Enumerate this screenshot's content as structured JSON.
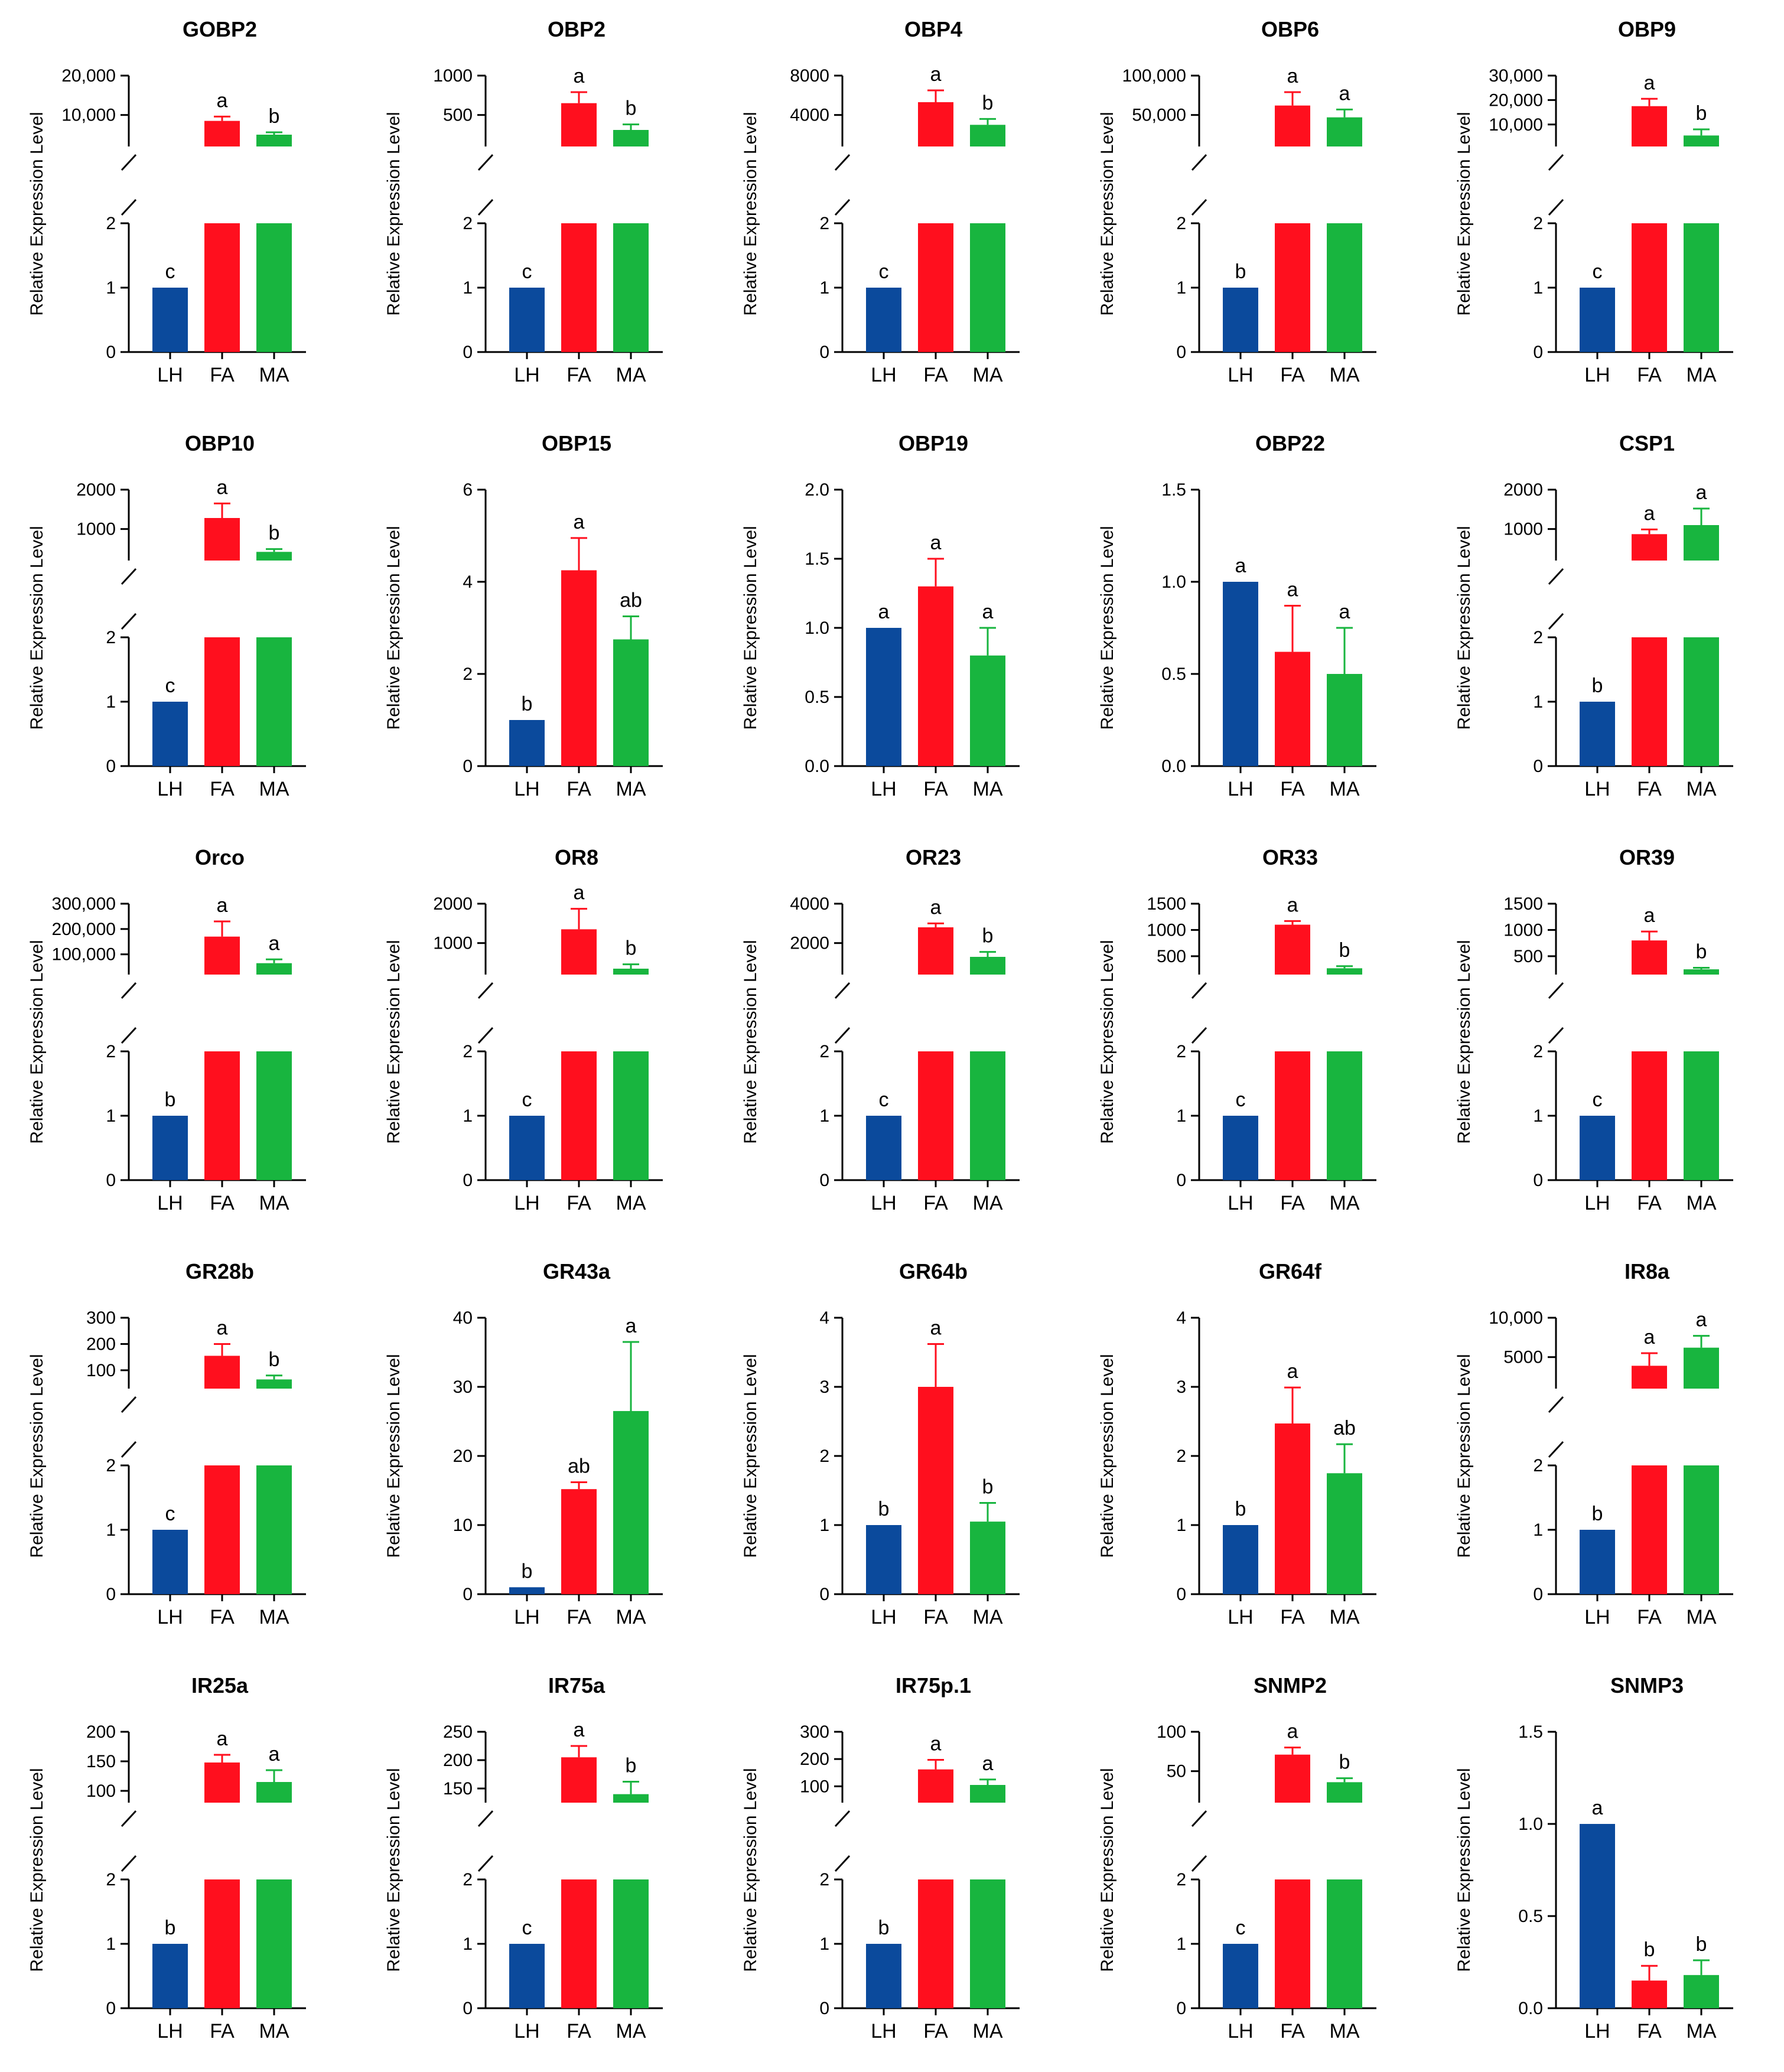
{
  "colors": {
    "LH": "#0b4a9c",
    "FA": "#ff0f1e",
    "MA": "#18b53f"
  },
  "chart_data": [
    {
      "type": "bar",
      "title": "GOBP2",
      "ylabel": "Relative Expression Level",
      "categories": [
        "LH",
        "FA",
        "MA"
      ],
      "values": [
        1,
        8500,
        5000
      ],
      "errors": [
        0,
        1100,
        600
      ],
      "letters": [
        "c",
        "a",
        "b"
      ],
      "broken": true,
      "lower_ylim": [
        0,
        2
      ],
      "lower_ticks": [
        "0",
        "1",
        "2"
      ],
      "upper_ylim": [
        2000,
        20000
      ],
      "upper_ticks": [
        {
          "v": 10000,
          "t": "10,000"
        },
        {
          "v": 20000,
          "t": "20,000"
        }
      ]
    },
    {
      "type": "bar",
      "title": "OBP2",
      "ylabel": "Relative Expression Level",
      "categories": [
        "LH",
        "FA",
        "MA"
      ],
      "values": [
        1,
        650,
        310
      ],
      "errors": [
        0,
        140,
        70
      ],
      "letters": [
        "c",
        "a",
        "b"
      ],
      "broken": true,
      "lower_ylim": [
        0,
        2
      ],
      "lower_ticks": [
        "0",
        "1",
        "2"
      ],
      "upper_ylim": [
        100,
        1000
      ],
      "upper_ticks": [
        {
          "v": 500,
          "t": "500"
        },
        {
          "v": 1000,
          "t": "1000"
        }
      ]
    },
    {
      "type": "bar",
      "title": "OBP4",
      "ylabel": "Relative Expression Level",
      "categories": [
        "LH",
        "FA",
        "MA"
      ],
      "values": [
        1,
        5300,
        3000
      ],
      "errors": [
        0,
        1200,
        600
      ],
      "letters": [
        "c",
        "a",
        "b"
      ],
      "broken": true,
      "lower_ylim": [
        0,
        2
      ],
      "lower_ticks": [
        "0",
        "1",
        "2"
      ],
      "upper_ylim": [
        800,
        8000
      ],
      "upper_ticks": [
        {
          "v": 4000,
          "t": "4000"
        },
        {
          "v": 8000,
          "t": "8000"
        }
      ]
    },
    {
      "type": "bar",
      "title": "OBP6",
      "ylabel": "Relative Expression Level",
      "categories": [
        "LH",
        "FA",
        "MA"
      ],
      "values": [
        1,
        62000,
        47000
      ],
      "errors": [
        0,
        17000,
        10000
      ],
      "letters": [
        "b",
        "a",
        "a"
      ],
      "broken": true,
      "lower_ylim": [
        0,
        2
      ],
      "lower_ticks": [
        "0",
        "1",
        "2"
      ],
      "upper_ylim": [
        10000,
        100000
      ],
      "upper_ticks": [
        {
          "v": 50000,
          "t": "50,000"
        },
        {
          "v": 100000,
          "t": "100,000"
        }
      ]
    },
    {
      "type": "bar",
      "title": "OBP9",
      "ylabel": "Relative Expression Level",
      "categories": [
        "LH",
        "FA",
        "MA"
      ],
      "values": [
        1,
        17500,
        5500
      ],
      "errors": [
        0,
        3000,
        2500
      ],
      "letters": [
        "c",
        "a",
        "b"
      ],
      "broken": true,
      "lower_ylim": [
        0,
        2
      ],
      "lower_ticks": [
        "0",
        "1",
        "2"
      ],
      "upper_ylim": [
        1000,
        30000
      ],
      "upper_ticks": [
        {
          "v": 10000,
          "t": "10,000"
        },
        {
          "v": 20000,
          "t": "20,000"
        },
        {
          "v": 30000,
          "t": "30,000"
        }
      ]
    },
    {
      "type": "bar",
      "title": "OBP10",
      "ylabel": "Relative Expression Level",
      "categories": [
        "LH",
        "FA",
        "MA"
      ],
      "values": [
        1,
        1280,
        420
      ],
      "errors": [
        0,
        370,
        70
      ],
      "letters": [
        "c",
        "a",
        "b"
      ],
      "broken": true,
      "lower_ylim": [
        0,
        2
      ],
      "lower_ticks": [
        "0",
        "1",
        "2"
      ],
      "upper_ylim": [
        200,
        2000
      ],
      "upper_ticks": [
        {
          "v": 1000,
          "t": "1000"
        },
        {
          "v": 2000,
          "t": "2000"
        }
      ]
    },
    {
      "type": "bar",
      "title": "OBP15",
      "ylabel": "Relative Expression Level",
      "categories": [
        "LH",
        "FA",
        "MA"
      ],
      "values": [
        1,
        4.25,
        2.75
      ],
      "errors": [
        0,
        0.7,
        0.5
      ],
      "letters": [
        "b",
        "a",
        "ab"
      ],
      "broken": false,
      "ylim": [
        0,
        6
      ],
      "ticks": [
        {
          "v": 0,
          "t": "0"
        },
        {
          "v": 2,
          "t": "2"
        },
        {
          "v": 4,
          "t": "4"
        },
        {
          "v": 6,
          "t": "6"
        }
      ]
    },
    {
      "type": "bar",
      "title": "OBP19",
      "ylabel": "Relative Expression Level",
      "categories": [
        "LH",
        "FA",
        "MA"
      ],
      "values": [
        1,
        1.3,
        0.8
      ],
      "errors": [
        0,
        0.2,
        0.2
      ],
      "letters": [
        "a",
        "a",
        "a"
      ],
      "broken": false,
      "ylim": [
        0,
        2
      ],
      "ticks": [
        {
          "v": 0,
          "t": "0.0"
        },
        {
          "v": 0.5,
          "t": "0.5"
        },
        {
          "v": 1,
          "t": "1.0"
        },
        {
          "v": 1.5,
          "t": "1.5"
        },
        {
          "v": 2,
          "t": "2.0"
        }
      ]
    },
    {
      "type": "bar",
      "title": "OBP22",
      "ylabel": "Relative Expression Level",
      "categories": [
        "LH",
        "FA",
        "MA"
      ],
      "values": [
        1,
        0.62,
        0.5
      ],
      "errors": [
        0,
        0.25,
        0.25
      ],
      "letters": [
        "a",
        "a",
        "a"
      ],
      "broken": false,
      "ylim": [
        0,
        1.5
      ],
      "ticks": [
        {
          "v": 0,
          "t": "0.0"
        },
        {
          "v": 0.5,
          "t": "0.5"
        },
        {
          "v": 1,
          "t": "1.0"
        },
        {
          "v": 1.5,
          "t": "1.5"
        }
      ]
    },
    {
      "type": "bar",
      "title": "CSP1",
      "ylabel": "Relative Expression Level",
      "categories": [
        "LH",
        "FA",
        "MA"
      ],
      "values": [
        1,
        870,
        1100
      ],
      "errors": [
        0,
        120,
        420
      ],
      "letters": [
        "b",
        "a",
        "a"
      ],
      "broken": true,
      "lower_ylim": [
        0,
        2
      ],
      "lower_ticks": [
        "0",
        "1",
        "2"
      ],
      "upper_ylim": [
        200,
        2000
      ],
      "upper_ticks": [
        {
          "v": 1000,
          "t": "1000"
        },
        {
          "v": 2000,
          "t": "2000"
        }
      ]
    },
    {
      "type": "bar",
      "title": "Orco",
      "ylabel": "Relative Expression Level",
      "categories": [
        "LH",
        "FA",
        "MA"
      ],
      "values": [
        1,
        170000,
        65000
      ],
      "errors": [
        0,
        60000,
        15000
      ],
      "letters": [
        "b",
        "a",
        "a"
      ],
      "broken": true,
      "lower_ylim": [
        0,
        2
      ],
      "lower_ticks": [
        "0",
        "1",
        "2"
      ],
      "upper_ylim": [
        20000,
        300000
      ],
      "upper_ticks": [
        {
          "v": 100000,
          "t": "100,000"
        },
        {
          "v": 200000,
          "t": "200,000"
        },
        {
          "v": 300000,
          "t": "300,000"
        }
      ]
    },
    {
      "type": "bar",
      "title": "OR8",
      "ylabel": "Relative Expression Level",
      "categories": [
        "LH",
        "FA",
        "MA"
      ],
      "values": [
        1,
        1350,
        350
      ],
      "errors": [
        0,
        520,
        110
      ],
      "letters": [
        "c",
        "a",
        "b"
      ],
      "broken": true,
      "lower_ylim": [
        0,
        2
      ],
      "lower_ticks": [
        "0",
        "1",
        "2"
      ],
      "upper_ylim": [
        200,
        2000
      ],
      "upper_ticks": [
        {
          "v": 1000,
          "t": "1000"
        },
        {
          "v": 2000,
          "t": "2000"
        }
      ]
    },
    {
      "type": "bar",
      "title": "OR23",
      "ylabel": "Relative Expression Level",
      "categories": [
        "LH",
        "FA",
        "MA"
      ],
      "values": [
        1,
        2800,
        1300
      ],
      "errors": [
        0,
        200,
        250
      ],
      "letters": [
        "c",
        "a",
        "b"
      ],
      "broken": true,
      "lower_ylim": [
        0,
        2
      ],
      "lower_ticks": [
        "0",
        "1",
        "2"
      ],
      "upper_ylim": [
        400,
        4000
      ],
      "upper_ticks": [
        {
          "v": 2000,
          "t": "2000"
        },
        {
          "v": 4000,
          "t": "4000"
        }
      ]
    },
    {
      "type": "bar",
      "title": "OR33",
      "ylabel": "Relative Expression Level",
      "categories": [
        "LH",
        "FA",
        "MA"
      ],
      "values": [
        1,
        1100,
        270
      ],
      "errors": [
        0,
        70,
        40
      ],
      "letters": [
        "c",
        "a",
        "b"
      ],
      "broken": true,
      "lower_ylim": [
        0,
        2
      ],
      "lower_ticks": [
        "0",
        "1",
        "2"
      ],
      "upper_ylim": [
        150,
        1500
      ],
      "upper_ticks": [
        {
          "v": 500,
          "t": "500"
        },
        {
          "v": 1000,
          "t": "1000"
        },
        {
          "v": 1500,
          "t": "1500"
        }
      ]
    },
    {
      "type": "bar",
      "title": "OR39",
      "ylabel": "Relative Expression Level",
      "categories": [
        "LH",
        "FA",
        "MA"
      ],
      "values": [
        1,
        800,
        250
      ],
      "errors": [
        0,
        170,
        30
      ],
      "letters": [
        "c",
        "a",
        "b"
      ],
      "broken": true,
      "lower_ylim": [
        0,
        2
      ],
      "lower_ticks": [
        "0",
        "1",
        "2"
      ],
      "upper_ylim": [
        150,
        1500
      ],
      "upper_ticks": [
        {
          "v": 500,
          "t": "500"
        },
        {
          "v": 1000,
          "t": "1000"
        },
        {
          "v": 1500,
          "t": "1500"
        }
      ]
    },
    {
      "type": "bar",
      "title": "GR28b",
      "ylabel": "Relative Expression Level",
      "categories": [
        "LH",
        "FA",
        "MA"
      ],
      "values": [
        1,
        155,
        65
      ],
      "errors": [
        0,
        45,
        15
      ],
      "letters": [
        "c",
        "a",
        "b"
      ],
      "broken": true,
      "lower_ylim": [
        0,
        2
      ],
      "lower_ticks": [
        "0",
        "1",
        "2"
      ],
      "upper_ylim": [
        30,
        300
      ],
      "upper_ticks": [
        {
          "v": 100,
          "t": "100"
        },
        {
          "v": 200,
          "t": "200"
        },
        {
          "v": 300,
          "t": "300"
        }
      ]
    },
    {
      "type": "bar",
      "title": "GR43a",
      "ylabel": "Relative Expression Level",
      "categories": [
        "LH",
        "FA",
        "MA"
      ],
      "values": [
        1,
        15.2,
        26.5
      ],
      "errors": [
        0,
        1,
        10
      ],
      "letters": [
        "b",
        "ab",
        "a"
      ],
      "broken": false,
      "ylim": [
        0,
        40
      ],
      "ticks": [
        {
          "v": 0,
          "t": "0"
        },
        {
          "v": 10,
          "t": "10"
        },
        {
          "v": 20,
          "t": "20"
        },
        {
          "v": 30,
          "t": "30"
        },
        {
          "v": 40,
          "t": "40"
        }
      ]
    },
    {
      "type": "bar",
      "title": "GR64b",
      "ylabel": "Relative Expression Level",
      "categories": [
        "LH",
        "FA",
        "MA"
      ],
      "values": [
        1,
        3,
        1.05
      ],
      "errors": [
        0,
        0.62,
        0.27
      ],
      "letters": [
        "b",
        "a",
        "b"
      ],
      "broken": false,
      "ylim": [
        0,
        4
      ],
      "ticks": [
        {
          "v": 0,
          "t": "0"
        },
        {
          "v": 1,
          "t": "1"
        },
        {
          "v": 2,
          "t": "2"
        },
        {
          "v": 3,
          "t": "3"
        },
        {
          "v": 4,
          "t": "4"
        }
      ]
    },
    {
      "type": "bar",
      "title": "GR64f",
      "ylabel": "Relative Expression Level",
      "categories": [
        "LH",
        "FA",
        "MA"
      ],
      "values": [
        1,
        2.47,
        1.75
      ],
      "errors": [
        0,
        0.52,
        0.42
      ],
      "letters": [
        "b",
        "a",
        "ab"
      ],
      "broken": false,
      "ylim": [
        0,
        4
      ],
      "ticks": [
        {
          "v": 0,
          "t": "0"
        },
        {
          "v": 1,
          "t": "1"
        },
        {
          "v": 2,
          "t": "2"
        },
        {
          "v": 3,
          "t": "3"
        },
        {
          "v": 4,
          "t": "4"
        }
      ]
    },
    {
      "type": "bar",
      "title": "IR8a",
      "ylabel": "Relative Expression Level",
      "categories": [
        "LH",
        "FA",
        "MA"
      ],
      "values": [
        1,
        3900,
        6200
      ],
      "errors": [
        0,
        1600,
        1500
      ],
      "letters": [
        "b",
        "a",
        "a"
      ],
      "broken": true,
      "lower_ylim": [
        0,
        2
      ],
      "lower_ticks": [
        "0",
        "1",
        "2"
      ],
      "upper_ylim": [
        1000,
        10000
      ],
      "upper_ticks": [
        {
          "v": 5000,
          "t": "5000"
        },
        {
          "v": 10000,
          "t": "10,000"
        }
      ]
    },
    {
      "type": "bar",
      "title": "IR25a",
      "ylabel": "Relative Expression Level",
      "categories": [
        "LH",
        "FA",
        "MA"
      ],
      "values": [
        1,
        148,
        115
      ],
      "errors": [
        0,
        13,
        20
      ],
      "letters": [
        "b",
        "a",
        "a"
      ],
      "broken": true,
      "lower_ylim": [
        0,
        2
      ],
      "lower_ticks": [
        "0",
        "1",
        "2"
      ],
      "upper_ylim": [
        80,
        200
      ],
      "upper_ticks": [
        {
          "v": 100,
          "t": "100"
        },
        {
          "v": 150,
          "t": "150"
        },
        {
          "v": 200,
          "t": "200"
        }
      ]
    },
    {
      "type": "bar",
      "title": "IR75a",
      "ylabel": "Relative Expression Level",
      "categories": [
        "LH",
        "FA",
        "MA"
      ],
      "values": [
        1,
        205,
        140
      ],
      "errors": [
        0,
        20,
        22
      ],
      "letters": [
        "c",
        "a",
        "b"
      ],
      "broken": true,
      "lower_ylim": [
        0,
        2
      ],
      "lower_ticks": [
        "0",
        "1",
        "2"
      ],
      "upper_ylim": [
        125,
        250
      ],
      "upper_ticks": [
        {
          "v": 150,
          "t": "150"
        },
        {
          "v": 200,
          "t": "200"
        },
        {
          "v": 250,
          "t": "250"
        }
      ]
    },
    {
      "type": "bar",
      "title": "IR75p.1",
      "ylabel": "Relative Expression Level",
      "categories": [
        "LH",
        "FA",
        "MA"
      ],
      "values": [
        1,
        162,
        105
      ],
      "errors": [
        0,
        35,
        20
      ],
      "letters": [
        "b",
        "a",
        "a"
      ],
      "broken": true,
      "lower_ylim": [
        0,
        2
      ],
      "lower_ticks": [
        "0",
        "1",
        "2"
      ],
      "upper_ylim": [
        40,
        300
      ],
      "upper_ticks": [
        {
          "v": 100,
          "t": "100"
        },
        {
          "v": 200,
          "t": "200"
        },
        {
          "v": 300,
          "t": "300"
        }
      ]
    },
    {
      "type": "bar",
      "title": "SNMP2",
      "ylabel": "Relative Expression Level",
      "categories": [
        "LH",
        "FA",
        "MA"
      ],
      "values": [
        1,
        71,
        36
      ],
      "errors": [
        0,
        9,
        5
      ],
      "letters": [
        "c",
        "a",
        "b"
      ],
      "broken": true,
      "lower_ylim": [
        0,
        2
      ],
      "lower_ticks": [
        "0",
        "1",
        "2"
      ],
      "upper_ylim": [
        10,
        100
      ],
      "upper_ticks": [
        {
          "v": 50,
          "t": "50"
        },
        {
          "v": 100,
          "t": "100"
        }
      ]
    },
    {
      "type": "bar",
      "title": "SNMP3",
      "ylabel": "Relative Expression Level",
      "categories": [
        "LH",
        "FA",
        "MA"
      ],
      "values": [
        1,
        0.15,
        0.18
      ],
      "errors": [
        0,
        0.08,
        0.08
      ],
      "letters": [
        "a",
        "b",
        "b"
      ],
      "broken": false,
      "ylim": [
        0,
        1.5
      ],
      "ticks": [
        {
          "v": 0,
          "t": "0.0"
        },
        {
          "v": 0.5,
          "t": "0.5"
        },
        {
          "v": 1,
          "t": "1.0"
        },
        {
          "v": 1.5,
          "t": "1.5"
        }
      ]
    }
  ]
}
